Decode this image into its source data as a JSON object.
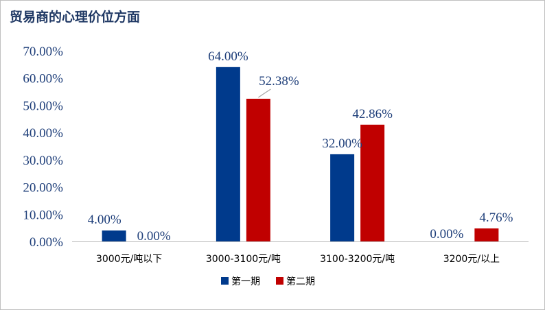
{
  "chart_data": {
    "type": "bar",
    "title": "贸易商的心理价位方面",
    "categories": [
      "3000元/吨以下",
      "3000-3100元/吨",
      "3100-3200元/吨",
      "3200元/以上"
    ],
    "series": [
      {
        "name": "第一期",
        "color": "#003a8c",
        "values": [
          4.0,
          64.0,
          32.0,
          0.0
        ],
        "labels": [
          "4.00%",
          "64.00%",
          "32.00%",
          "0.00%"
        ]
      },
      {
        "name": "第二期",
        "color": "#c00000",
        "values": [
          0.0,
          52.38,
          42.86,
          4.76
        ],
        "labels": [
          "0.00%",
          "52.38%",
          "42.86%",
          "4.76%"
        ]
      }
    ],
    "yticks": [
      "0.00%",
      "10.00%",
      "20.00%",
      "30.00%",
      "40.00%",
      "50.00%",
      "60.00%",
      "70.00%"
    ],
    "ylim": [
      0,
      70
    ],
    "xlabel": "",
    "ylabel": "",
    "grid": false,
    "legend": "bottom"
  }
}
